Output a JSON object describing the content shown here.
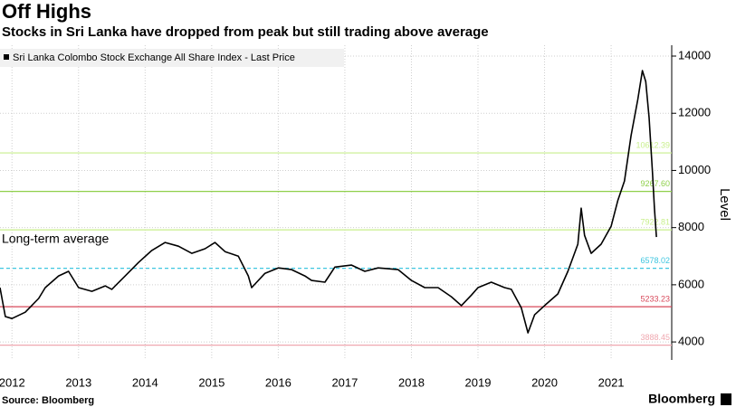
{
  "chart_data": {
    "type": "line",
    "title": "Off Highs",
    "subtitle": "Stocks in Sri Lanka have dropped from peak but still trading above average",
    "source": "Source: Bloomberg",
    "brand": "Bloomberg",
    "y_axis_label": "Level",
    "annotation": "Long-term average",
    "legend_position": "top-left",
    "grid": true,
    "xlim": [
      2012.32,
      2022.41
    ],
    "ylim": [
      3370,
      14380
    ],
    "xticks": [
      {
        "value": 2012.5,
        "label": "2012"
      },
      {
        "value": 2013.5,
        "label": "2013"
      },
      {
        "value": 2014.5,
        "label": "2014"
      },
      {
        "value": 2015.5,
        "label": "2015"
      },
      {
        "value": 2016.5,
        "label": "2016"
      },
      {
        "value": 2017.5,
        "label": "2017"
      },
      {
        "value": 2018.5,
        "label": "2018"
      },
      {
        "value": 2019.5,
        "label": "2019"
      },
      {
        "value": 2020.5,
        "label": "2020"
      },
      {
        "value": 2021.5,
        "label": "2021"
      }
    ],
    "yticks": [
      4000,
      6000,
      8000,
      10000,
      12000,
      14000
    ],
    "reference_lines": [
      {
        "value": 10612.39,
        "label": "10612.39",
        "color": "#c8ef8c"
      },
      {
        "value": 9267.6,
        "label": "9267.60",
        "color": "#8fd04a"
      },
      {
        "value": 7922.81,
        "label": "7922.81",
        "color": "#c8ef8c"
      },
      {
        "value": 6578.02,
        "label": "6578.02",
        "color": "#3fc6e0"
      },
      {
        "value": 5233.23,
        "label": "5233.23",
        "color": "#d8485a"
      },
      {
        "value": 3888.45,
        "label": "3888.45",
        "color": "#f0a8b0"
      }
    ],
    "series": [
      {
        "name": "Sri Lanka Colombo Stock Exchange All Share Index - Last Price",
        "color": "#000000",
        "x": [
          2012.32,
          2012.4,
          2012.5,
          2012.7,
          2012.9,
          2013.0,
          2013.2,
          2013.35,
          2013.5,
          2013.7,
          2013.9,
          2014.0,
          2014.2,
          2014.4,
          2014.6,
          2014.8,
          2015.0,
          2015.2,
          2015.4,
          2015.55,
          2015.7,
          2015.9,
          2016.05,
          2016.1,
          2016.3,
          2016.5,
          2016.7,
          2016.9,
          2017.0,
          2017.2,
          2017.35,
          2017.6,
          2017.8,
          2018.0,
          2018.3,
          2018.5,
          2018.7,
          2018.9,
          2019.1,
          2019.25,
          2019.4,
          2019.5,
          2019.7,
          2019.9,
          2020.0,
          2020.15,
          2020.25,
          2020.35,
          2020.5,
          2020.7,
          2020.85,
          2021.0,
          2021.05,
          2021.1,
          2021.2,
          2021.35,
          2021.5,
          2021.6,
          2021.7,
          2021.8,
          2021.9,
          2021.97,
          2022.02,
          2022.07,
          2022.12,
          2022.15,
          2022.18
        ],
        "values": [
          5900,
          4890,
          4820,
          5040,
          5520,
          5900,
          6310,
          6470,
          5900,
          5770,
          5960,
          5840,
          6310,
          6780,
          7200,
          7480,
          7350,
          7100,
          7260,
          7480,
          7160,
          7000,
          6310,
          5900,
          6400,
          6590,
          6530,
          6310,
          6150,
          6090,
          6620,
          6690,
          6470,
          6590,
          6530,
          6150,
          5900,
          5900,
          5580,
          5270,
          5640,
          5900,
          6090,
          5900,
          5840,
          5200,
          4320,
          4950,
          5270,
          5680,
          6470,
          7420,
          8680,
          7730,
          7100,
          7420,
          8050,
          8940,
          9630,
          11220,
          12480,
          13490,
          13110,
          11850,
          9950,
          8680,
          7670
        ]
      }
    ]
  }
}
